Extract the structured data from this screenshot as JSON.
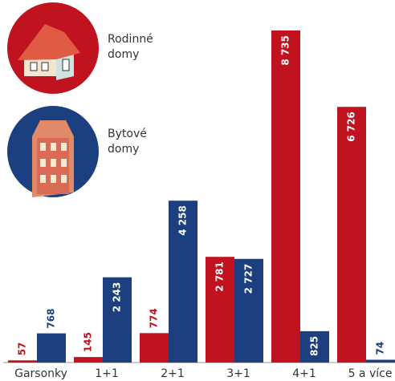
{
  "chart_data": {
    "type": "bar",
    "categories": [
      "Garsonky",
      "1+1",
      "2+1",
      "3+1",
      "4+1",
      "5 a více"
    ],
    "series": [
      {
        "name": "Rodinné domy",
        "color": "#c1121f",
        "values": [
          57,
          145,
          774,
          2781,
          8735,
          6726
        ],
        "value_labels": [
          "57",
          "145",
          "774",
          "2 781",
          "8 735",
          "6 726"
        ]
      },
      {
        "name": "Bytové domy",
        "color": "#1c3f7f",
        "values": [
          768,
          2243,
          4258,
          2727,
          825,
          74
        ],
        "value_labels": [
          "768",
          "2 243",
          "4 258",
          "2 727",
          "825",
          "74"
        ]
      }
    ]
  }
}
